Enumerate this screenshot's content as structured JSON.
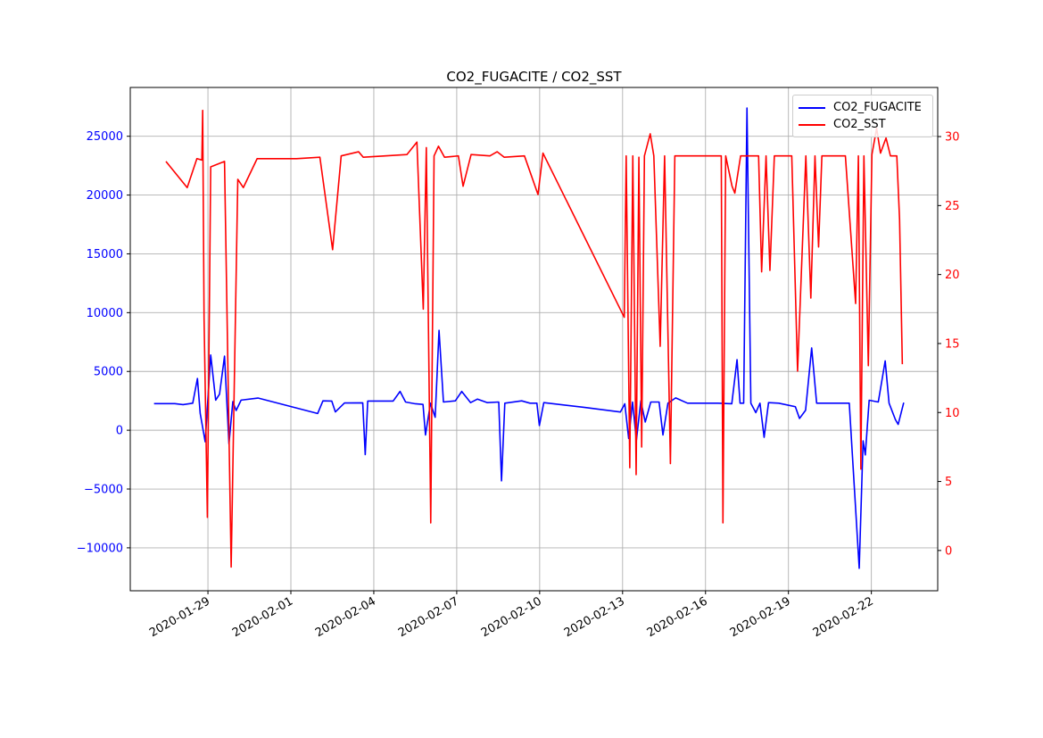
{
  "title": "CO2_FUGACITE / CO2_SST",
  "legend": [
    {
      "label": "CO2_FUGACITE",
      "color": "#0000ff"
    },
    {
      "label": "CO2_SST",
      "color": "#ff0000"
    }
  ],
  "chart_data": {
    "type": "line",
    "title": "CO2_FUGACITE / CO2_SST",
    "x_encoding": "t = days since 2020-01-26 00:00",
    "xlim": [
      0.19,
      29.4
    ],
    "grid": {
      "show": true,
      "color": "#b0b0b0"
    },
    "background": "#ffffff",
    "spine_color": "#000000",
    "tick_color": "#000000",
    "x_tick_label_color": "#000000",
    "legend_position": "upper right",
    "x_ticks": [
      {
        "t": 3,
        "label": "2020-01-29"
      },
      {
        "t": 6,
        "label": "2020-02-01"
      },
      {
        "t": 9,
        "label": "2020-02-04"
      },
      {
        "t": 12,
        "label": "2020-02-07"
      },
      {
        "t": 15,
        "label": "2020-02-10"
      },
      {
        "t": 18,
        "label": "2020-02-13"
      },
      {
        "t": 21,
        "label": "2020-02-16"
      },
      {
        "t": 24,
        "label": "2020-02-19"
      },
      {
        "t": 27,
        "label": "2020-02-22"
      }
    ],
    "left_axis": {
      "color": "#0000ff",
      "lim": [
        -13650,
        29150
      ],
      "ticks": [
        {
          "v": 25000,
          "label": "25000"
        },
        {
          "v": 20000,
          "label": "20000"
        },
        {
          "v": 15000,
          "label": "15000"
        },
        {
          "v": 10000,
          "label": "10000"
        },
        {
          "v": 5000,
          "label": "5000"
        },
        {
          "v": 0,
          "label": "0"
        },
        {
          "v": -5000,
          "label": "−5000"
        },
        {
          "v": -10000,
          "label": "−10000"
        }
      ]
    },
    "right_axis": {
      "color": "#ff0000",
      "lim": [
        -2.92,
        33.56
      ],
      "ticks": [
        {
          "v": 30,
          "label": "30"
        },
        {
          "v": 25,
          "label": "25"
        },
        {
          "v": 20,
          "label": "20"
        },
        {
          "v": 15,
          "label": "15"
        },
        {
          "v": 10,
          "label": "10"
        },
        {
          "v": 5,
          "label": "5"
        },
        {
          "v": 0,
          "label": "0"
        }
      ]
    },
    "series": [
      {
        "name": "CO2_FUGACITE",
        "color": "#0000ff",
        "axis": "left",
        "linewidth": 1.6,
        "points": [
          [
            1.05,
            2260
          ],
          [
            1.8,
            2260
          ],
          [
            2.1,
            2180
          ],
          [
            2.45,
            2300
          ],
          [
            2.62,
            4400
          ],
          [
            2.72,
            1430
          ],
          [
            2.9,
            -980
          ],
          [
            3.1,
            6400
          ],
          [
            3.28,
            2560
          ],
          [
            3.42,
            3070
          ],
          [
            3.6,
            6300
          ],
          [
            3.76,
            -1150
          ],
          [
            3.9,
            2430
          ],
          [
            4.02,
            1680
          ],
          [
            4.2,
            2560
          ],
          [
            4.81,
            2740
          ],
          [
            6.97,
            1425
          ],
          [
            7.16,
            2500
          ],
          [
            7.48,
            2480
          ],
          [
            7.61,
            1560
          ],
          [
            7.94,
            2320
          ],
          [
            8.6,
            2330
          ],
          [
            8.69,
            -2070
          ],
          [
            8.78,
            2480
          ],
          [
            9.7,
            2480
          ],
          [
            9.95,
            3300
          ],
          [
            10.15,
            2400
          ],
          [
            10.5,
            2250
          ],
          [
            10.78,
            2200
          ],
          [
            10.87,
            -400
          ],
          [
            11.05,
            2300
          ],
          [
            11.22,
            1100
          ],
          [
            11.36,
            8500
          ],
          [
            11.52,
            2400
          ],
          [
            11.95,
            2500
          ],
          [
            12.18,
            3300
          ],
          [
            12.5,
            2350
          ],
          [
            12.75,
            2650
          ],
          [
            13.1,
            2350
          ],
          [
            13.52,
            2400
          ],
          [
            13.62,
            -4300
          ],
          [
            13.74,
            2300
          ],
          [
            14.35,
            2500
          ],
          [
            14.65,
            2300
          ],
          [
            14.9,
            2300
          ],
          [
            14.99,
            400
          ],
          [
            15.15,
            2350
          ],
          [
            16.6,
            1950
          ],
          [
            17.92,
            1550
          ],
          [
            18.08,
            2250
          ],
          [
            18.22,
            -700
          ],
          [
            18.36,
            2400
          ],
          [
            18.5,
            -850
          ],
          [
            18.66,
            2500
          ],
          [
            18.82,
            700
          ],
          [
            19.02,
            2400
          ],
          [
            19.32,
            2400
          ],
          [
            19.46,
            -400
          ],
          [
            19.64,
            2300
          ],
          [
            19.92,
            2750
          ],
          [
            20.35,
            2300
          ],
          [
            21.45,
            2300
          ],
          [
            21.95,
            2250
          ],
          [
            22.14,
            6000
          ],
          [
            22.25,
            2300
          ],
          [
            22.38,
            2300
          ],
          [
            22.5,
            27400
          ],
          [
            22.64,
            2300
          ],
          [
            22.82,
            1500
          ],
          [
            22.97,
            2300
          ],
          [
            23.12,
            -600
          ],
          [
            23.28,
            2350
          ],
          [
            23.65,
            2300
          ],
          [
            24.25,
            2000
          ],
          [
            24.4,
            1000
          ],
          [
            24.62,
            1700
          ],
          [
            24.84,
            7000
          ],
          [
            25.02,
            2300
          ],
          [
            25.55,
            2300
          ],
          [
            26.2,
            2300
          ],
          [
            26.56,
            -11740
          ],
          [
            26.7,
            -900
          ],
          [
            26.78,
            -2100
          ],
          [
            26.92,
            2550
          ],
          [
            27.25,
            2400
          ],
          [
            27.5,
            5900
          ],
          [
            27.64,
            2300
          ],
          [
            27.87,
            900
          ],
          [
            27.97,
            500
          ],
          [
            28.17,
            2350
          ]
        ]
      },
      {
        "name": "CO2_SST",
        "color": "#ff0000",
        "axis": "right",
        "linewidth": 1.6,
        "points": [
          [
            1.48,
            28.2
          ],
          [
            2.25,
            26.3
          ],
          [
            2.6,
            28.4
          ],
          [
            2.78,
            28.3
          ],
          [
            2.81,
            31.9
          ],
          [
            2.86,
            16.8
          ],
          [
            2.98,
            2.4
          ],
          [
            3.1,
            27.8
          ],
          [
            3.6,
            28.2
          ],
          [
            3.84,
            -1.2
          ],
          [
            4.08,
            26.9
          ],
          [
            4.28,
            26.3
          ],
          [
            4.78,
            28.4
          ],
          [
            6.2,
            28.4
          ],
          [
            7.05,
            28.5
          ],
          [
            7.51,
            21.8
          ],
          [
            7.82,
            28.6
          ],
          [
            8.45,
            28.9
          ],
          [
            8.62,
            28.5
          ],
          [
            10.2,
            28.7
          ],
          [
            10.56,
            29.6
          ],
          [
            10.79,
            17.5
          ],
          [
            10.9,
            29.2
          ],
          [
            11.06,
            2.0
          ],
          [
            11.18,
            28.6
          ],
          [
            11.34,
            29.3
          ],
          [
            11.56,
            28.5
          ],
          [
            12.06,
            28.6
          ],
          [
            12.23,
            26.4
          ],
          [
            12.52,
            28.7
          ],
          [
            13.2,
            28.6
          ],
          [
            13.46,
            28.9
          ],
          [
            13.72,
            28.5
          ],
          [
            14.45,
            28.6
          ],
          [
            14.94,
            25.8
          ],
          [
            15.12,
            28.8
          ],
          [
            18.06,
            16.9
          ],
          [
            18.13,
            28.6
          ],
          [
            18.26,
            6.0
          ],
          [
            18.37,
            28.6
          ],
          [
            18.49,
            5.5
          ],
          [
            18.59,
            28.5
          ],
          [
            18.69,
            7.5
          ],
          [
            18.79,
            28.6
          ],
          [
            19.0,
            30.2
          ],
          [
            19.13,
            28.6
          ],
          [
            19.36,
            14.8
          ],
          [
            19.52,
            28.6
          ],
          [
            19.73,
            6.3
          ],
          [
            19.89,
            28.6
          ],
          [
            21.35,
            28.6
          ],
          [
            21.57,
            28.6
          ],
          [
            21.63,
            2.0
          ],
          [
            21.73,
            28.6
          ],
          [
            21.96,
            26.4
          ],
          [
            22.06,
            25.9
          ],
          [
            22.27,
            28.6
          ],
          [
            22.92,
            28.6
          ],
          [
            23.03,
            20.2
          ],
          [
            23.19,
            28.6
          ],
          [
            23.33,
            20.3
          ],
          [
            23.49,
            28.6
          ],
          [
            24.12,
            28.6
          ],
          [
            24.33,
            13.0
          ],
          [
            24.63,
            28.6
          ],
          [
            24.81,
            18.3
          ],
          [
            24.96,
            28.6
          ],
          [
            25.09,
            22.0
          ],
          [
            25.21,
            28.6
          ],
          [
            26.06,
            28.6
          ],
          [
            26.43,
            17.9
          ],
          [
            26.53,
            28.6
          ],
          [
            26.62,
            5.9
          ],
          [
            26.73,
            28.6
          ],
          [
            26.89,
            13.4
          ],
          [
            27.02,
            28.7
          ],
          [
            27.19,
            30.6
          ],
          [
            27.33,
            28.8
          ],
          [
            27.53,
            29.9
          ],
          [
            27.69,
            28.6
          ],
          [
            27.92,
            28.6
          ],
          [
            28.02,
            24.0
          ],
          [
            28.12,
            13.5
          ]
        ]
      }
    ]
  }
}
